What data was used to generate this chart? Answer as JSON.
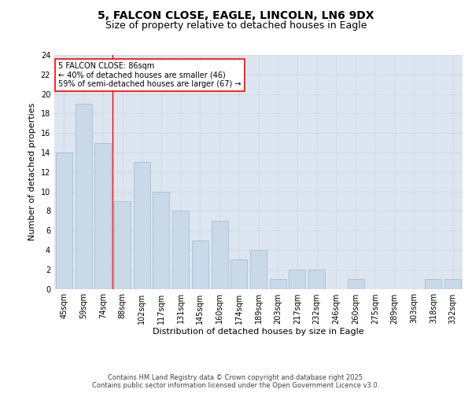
{
  "title1": "5, FALCON CLOSE, EAGLE, LINCOLN, LN6 9DX",
  "title2": "Size of property relative to detached houses in Eagle",
  "xlabel": "Distribution of detached houses by size in Eagle",
  "ylabel": "Number of detached properties",
  "categories": [
    "45sqm",
    "59sqm",
    "74sqm",
    "88sqm",
    "102sqm",
    "117sqm",
    "131sqm",
    "145sqm",
    "160sqm",
    "174sqm",
    "189sqm",
    "203sqm",
    "217sqm",
    "232sqm",
    "246sqm",
    "260sqm",
    "275sqm",
    "289sqm",
    "303sqm",
    "318sqm",
    "332sqm"
  ],
  "values": [
    14,
    19,
    15,
    9,
    13,
    10,
    8,
    5,
    7,
    3,
    4,
    1,
    2,
    2,
    0,
    1,
    0,
    0,
    0,
    1,
    1
  ],
  "bar_color": "#c9d9e8",
  "bar_edgecolor": "#a0b8cc",
  "redline_index": 2.5,
  "annotation_text": "5 FALCON CLOSE: 86sqm\n← 40% of detached houses are smaller (46)\n59% of semi-detached houses are larger (67) →",
  "annotation_box_color": "white",
  "annotation_box_edgecolor": "red",
  "redline_color": "red",
  "ylim": [
    0,
    24
  ],
  "yticks": [
    0,
    2,
    4,
    6,
    8,
    10,
    12,
    14,
    16,
    18,
    20,
    22,
    24
  ],
  "grid_color": "#d0d8e0",
  "background_color": "#dde6f0",
  "footer_text": "Contains HM Land Registry data © Crown copyright and database right 2025.\nContains public sector information licensed under the Open Government Licence v3.0.",
  "title_fontsize": 10,
  "subtitle_fontsize": 9,
  "tick_fontsize": 7,
  "ylabel_fontsize": 8,
  "xlabel_fontsize": 8,
  "footer_fontsize": 6,
  "annotation_fontsize": 7
}
